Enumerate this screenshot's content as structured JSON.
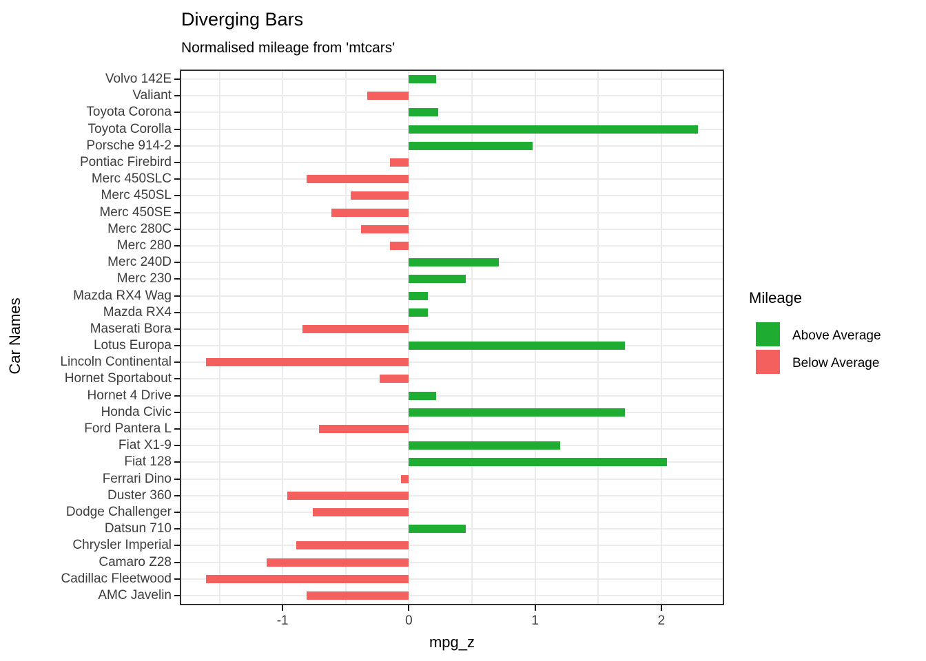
{
  "chart_data": {
    "type": "bar",
    "orientation": "horizontal_diverging",
    "title": "Diverging Bars",
    "subtitle": "Normalised mileage from 'mtcars'",
    "xlabel": "mpg_z",
    "ylabel": "Car Names",
    "xlim": [
      -1.803,
      2.486
    ],
    "x_ticks": [
      -1,
      0,
      1,
      2
    ],
    "gridline_step": 0.5,
    "grid_on": true,
    "bars": [
      {
        "name": "Volvo 142E",
        "value": 0.217,
        "group": "above"
      },
      {
        "name": "Valiant",
        "value": -0.33,
        "group": "below"
      },
      {
        "name": "Toyota Corona",
        "value": 0.234,
        "group": "above"
      },
      {
        "name": "Toyota Corolla",
        "value": 2.291,
        "group": "above"
      },
      {
        "name": "Porsche 914-2",
        "value": 0.981,
        "group": "above"
      },
      {
        "name": "Pontiac Firebird",
        "value": -0.148,
        "group": "below"
      },
      {
        "name": "Merc 450SLC",
        "value": -0.811,
        "group": "below"
      },
      {
        "name": "Merc 450SL",
        "value": -0.463,
        "group": "below"
      },
      {
        "name": "Merc 450SE",
        "value": -0.612,
        "group": "below"
      },
      {
        "name": "Merc 280C",
        "value": -0.38,
        "group": "below"
      },
      {
        "name": "Merc 280",
        "value": -0.148,
        "group": "below"
      },
      {
        "name": "Merc 240D",
        "value": 0.715,
        "group": "above"
      },
      {
        "name": "Merc 230",
        "value": 0.45,
        "group": "above"
      },
      {
        "name": "Mazda RX4 Wag",
        "value": 0.151,
        "group": "above"
      },
      {
        "name": "Mazda RX4",
        "value": 0.151,
        "group": "above"
      },
      {
        "name": "Maserati Bora",
        "value": -0.845,
        "group": "below"
      },
      {
        "name": "Lotus Europa",
        "value": 1.711,
        "group": "above"
      },
      {
        "name": "Lincoln Continental",
        "value": -1.608,
        "group": "below"
      },
      {
        "name": "Hornet Sportabout",
        "value": -0.231,
        "group": "below"
      },
      {
        "name": "Hornet 4 Drive",
        "value": 0.217,
        "group": "above"
      },
      {
        "name": "Honda Civic",
        "value": 1.711,
        "group": "above"
      },
      {
        "name": "Ford Pantera L",
        "value": -0.712,
        "group": "below"
      },
      {
        "name": "Fiat X1-9",
        "value": 1.196,
        "group": "above"
      },
      {
        "name": "Fiat 128",
        "value": 2.042,
        "group": "above"
      },
      {
        "name": "Ferrari Dino",
        "value": -0.065,
        "group": "below"
      },
      {
        "name": "Duster 360",
        "value": -0.961,
        "group": "below"
      },
      {
        "name": "Dodge Challenger",
        "value": -0.762,
        "group": "below"
      },
      {
        "name": "Datsun 710",
        "value": 0.45,
        "group": "above"
      },
      {
        "name": "Chrysler Imperial",
        "value": -0.894,
        "group": "below"
      },
      {
        "name": "Camaro Z28",
        "value": -1.127,
        "group": "below"
      },
      {
        "name": "Cadillac Fleetwood",
        "value": -1.608,
        "group": "below"
      },
      {
        "name": "AMC Javelin",
        "value": -0.811,
        "group": "below"
      }
    ],
    "groups": {
      "above": {
        "label": "Above Average",
        "color": "#1eac32"
      },
      "below": {
        "label": "Below Average",
        "color": "#f3605d"
      }
    },
    "legend": {
      "title": "Mileage",
      "position": "right",
      "items": [
        {
          "group": "above",
          "label": "Above Average"
        },
        {
          "group": "below",
          "label": "Below Average"
        }
      ]
    }
  },
  "colors": {
    "background": "#ffffff",
    "panel_border": "#333333",
    "gridline": "#ebebeb",
    "tick_mark": "#1a1a1a",
    "axis_text": "#3d3d3d",
    "title_text": "#000000"
  }
}
